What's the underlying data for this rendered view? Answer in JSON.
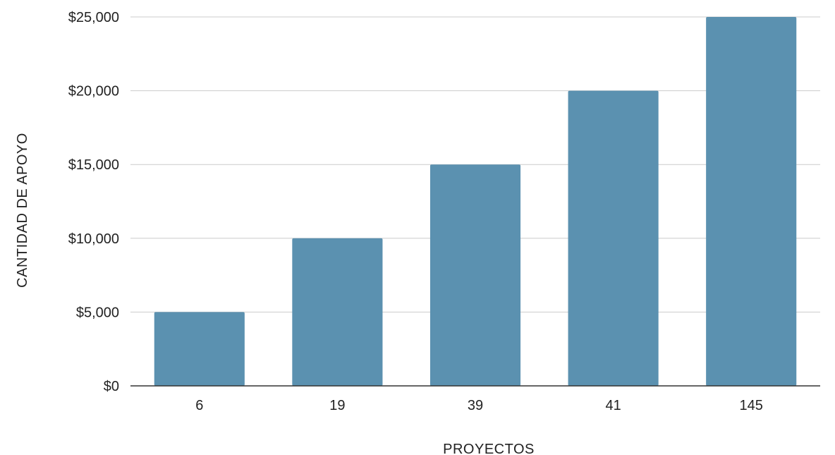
{
  "chart_data": {
    "type": "bar",
    "title": "",
    "xlabel": "PROYECTOS",
    "ylabel": "CANTIDAD DE APOYO",
    "categories": [
      "6",
      "19",
      "39",
      "41",
      "145"
    ],
    "values": [
      5000,
      10000,
      15000,
      20000,
      25000
    ],
    "ylim": [
      0,
      25000
    ],
    "yticks": [
      0,
      5000,
      10000,
      15000,
      20000,
      25000
    ],
    "ytick_labels": [
      "$0",
      "$5,000",
      "$10,000",
      "$15,000",
      "$20,000",
      "$25,000"
    ],
    "grid": true,
    "legend": "none",
    "bar_color": "#5b91b0"
  }
}
